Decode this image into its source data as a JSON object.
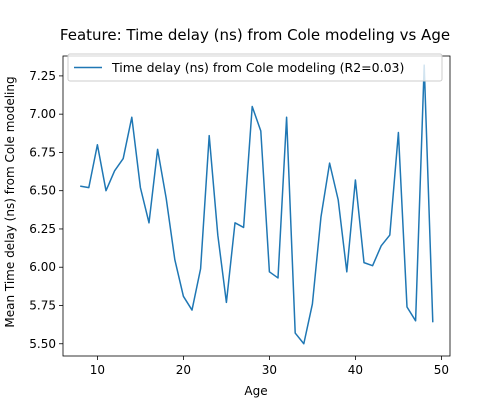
{
  "chart_data": {
    "type": "line",
    "title": "Feature: Time delay (ns) from Cole modeling vs Age",
    "xlabel": "Age",
    "ylabel": "Mean Time delay (ns) from Cole modeling",
    "xlim": [
      6.0,
      51.0
    ],
    "ylim": [
      5.42,
      7.38
    ],
    "xticks": [
      10,
      20,
      30,
      40,
      50
    ],
    "yticks": [
      5.5,
      5.75,
      6.0,
      6.25,
      6.5,
      6.75,
      7.0,
      7.25
    ],
    "xtick_labels": [
      "10",
      "20",
      "30",
      "40",
      "50"
    ],
    "ytick_labels": [
      "5.50",
      "5.75",
      "6.00",
      "6.25",
      "6.50",
      "6.75",
      "7.00",
      "7.25"
    ],
    "legend_position": "top-left",
    "grid": false,
    "series": [
      {
        "name": "Time delay (ns) from Cole modeling (R2=0.03)",
        "color": "#1f77b4",
        "x": [
          8,
          9,
          10,
          11,
          12,
          13,
          14,
          15,
          16,
          17,
          18,
          19,
          20,
          21,
          22,
          23,
          24,
          25,
          26,
          27,
          28,
          29,
          30,
          31,
          32,
          33,
          34,
          35,
          36,
          37,
          38,
          39,
          40,
          41,
          42,
          43,
          44,
          45,
          46,
          47,
          48,
          49
        ],
        "y": [
          6.53,
          6.52,
          6.8,
          6.5,
          6.63,
          6.71,
          6.98,
          6.52,
          6.29,
          6.77,
          6.45,
          6.05,
          5.81,
          5.72,
          5.99,
          6.86,
          6.21,
          5.77,
          6.29,
          6.26,
          7.05,
          6.89,
          5.97,
          5.93,
          6.98,
          5.57,
          5.5,
          5.76,
          6.33,
          6.68,
          6.44,
          5.97,
          6.57,
          6.03,
          6.01,
          6.14,
          6.21,
          6.88,
          5.74,
          5.65,
          7.32,
          5.64
        ]
      }
    ]
  }
}
